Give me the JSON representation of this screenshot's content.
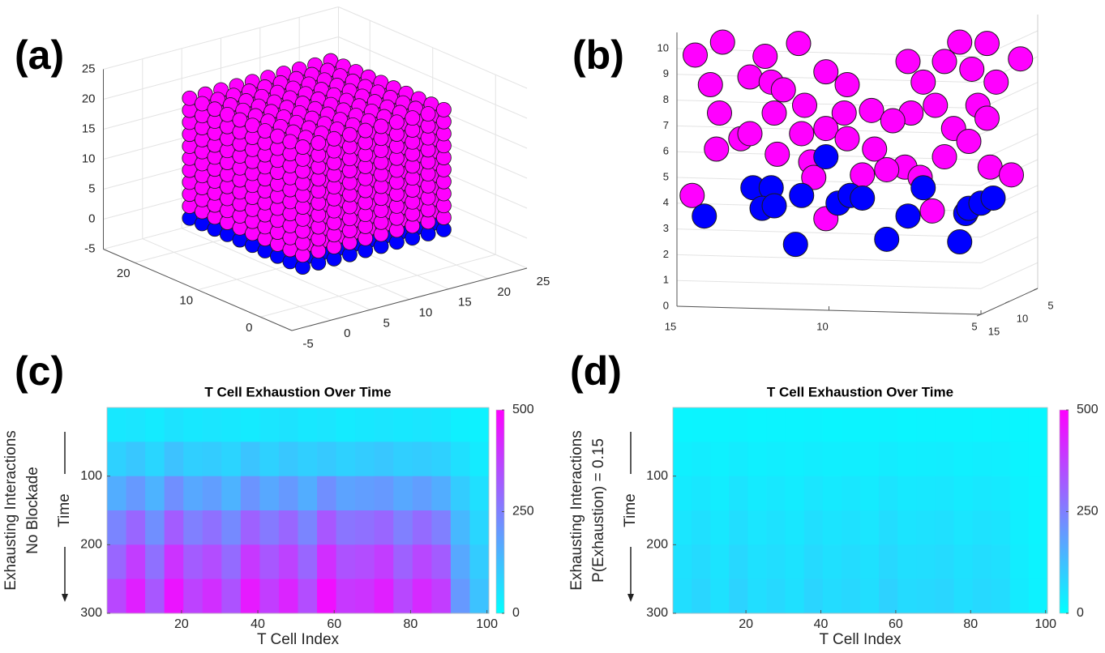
{
  "chart_data": [
    {
      "type": "lattice3d",
      "label": "(a)",
      "xlim": [
        -5,
        25
      ],
      "ylim": [
        -5,
        25
      ],
      "zlim": [
        -5,
        25
      ],
      "xticks": [
        -5,
        0,
        5,
        10,
        15,
        20,
        25
      ],
      "yticks": [
        0,
        10,
        20
      ],
      "zticks": [
        -5,
        0,
        5,
        10,
        15,
        20,
        25
      ],
      "series": [
        {
          "color": "#ff00ff",
          "x": [
            2,
            4,
            6,
            8,
            10,
            12,
            14,
            16,
            18,
            20
          ],
          "y": [
            2,
            4,
            6,
            8,
            10,
            12,
            14,
            16,
            18,
            20
          ],
          "z": [
            2,
            4,
            6,
            8,
            10,
            12,
            14,
            16,
            18,
            20
          ]
        },
        {
          "color": "#0000ff",
          "x": [
            2,
            4,
            6,
            8,
            10,
            12,
            14,
            16,
            18,
            20
          ],
          "y": [
            2,
            4,
            6,
            8,
            10,
            12,
            14,
            16,
            18,
            20
          ],
          "z": [
            0
          ]
        }
      ]
    },
    {
      "type": "scatter3d",
      "label": "(b)",
      "xlim": [
        15,
        5
      ],
      "ylim": [
        15,
        5
      ],
      "zlim": [
        0,
        10
      ],
      "xticks": [
        15,
        10,
        5
      ],
      "yticks": [
        15,
        10,
        5
      ],
      "zticks": [
        0,
        1,
        2,
        3,
        4,
        5,
        6,
        7,
        8,
        9,
        10
      ],
      "series": [
        {
          "color": "#ff00ff",
          "x": [
            14.4,
            13.5,
            13.9,
            13.6,
            13.7,
            12.9,
            12.1,
            11.0,
            12.6,
            11.9,
            11.5,
            10.8,
            11.8,
            12.6,
            11.7,
            10.9,
            10.1,
            9.4,
            9.5,
            8.6,
            10.1,
            9.4,
            10.6,
            10.5,
            8.5,
            8.9,
            7.5,
            7.4,
            6.9,
            7.3,
            6.5,
            6.2,
            5.7,
            5.3,
            4.8,
            3.7,
            4.5,
            5.1,
            4.8,
            5.9,
            6.2,
            5.4,
            4.7,
            4.0,
            7.9,
            14.5,
            10.1,
            6.6,
            7.0,
            8.1
          ],
          "z": [
            9.75,
            10.25,
            8.6,
            7.5,
            6.1,
            6.5,
            9.7,
            10.2,
            8.9,
            8.7,
            8.4,
            7.8,
            7.5,
            6.7,
            5.9,
            6.7,
            9.1,
            8.6,
            7.5,
            7.6,
            6.9,
            6.5,
            5.6,
            5.0,
            6.1,
            5.1,
            5.4,
            9.5,
            8.7,
            7.5,
            7.8,
            9.5,
            10.25,
            9.2,
            10.2,
            9.6,
            8.7,
            7.8,
            7.3,
            6.9,
            5.8,
            6.4,
            5.4,
            5.1,
            7.2,
            4.3,
            3.4,
            3.7,
            5.0,
            5.3
          ]
        },
        {
          "color": "#0000ff",
          "x": [
            14.1,
            10.1,
            12.5,
            11.9,
            12.2,
            11.8,
            10.9,
            11.1,
            9.7,
            9.3,
            8.9,
            8.1,
            7.4,
            6.9,
            5.5,
            5.4,
            5.0,
            4.6,
            5.7
          ],
          "z": [
            3.5,
            5.8,
            4.6,
            4.6,
            3.8,
            3.9,
            4.3,
            2.4,
            4.0,
            4.3,
            4.2,
            2.6,
            3.5,
            4.6,
            3.6,
            3.8,
            4.0,
            4.2,
            2.5
          ]
        }
      ]
    },
    {
      "type": "heatmap",
      "label": "(c)",
      "title": "T Cell Exhaustion Over Time",
      "xlabel": "T Cell Index",
      "ylabel": "Time",
      "side_labels": [
        "Exhausting Interactions",
        "No Blockade"
      ],
      "xlim": [
        0.5,
        100.5
      ],
      "ylim": [
        0,
        300
      ],
      "xticks": [
        20,
        40,
        60,
        80,
        100
      ],
      "yticks": [
        100,
        200,
        300
      ],
      "clim": [
        0,
        500
      ],
      "cticks": [
        0,
        250,
        500
      ],
      "colormap": [
        "#00ffff",
        "#ff00ff"
      ],
      "x": [
        3,
        8,
        13,
        18,
        23,
        28,
        33,
        38,
        43,
        48,
        53,
        58,
        63,
        68,
        73,
        78,
        83,
        88,
        93,
        98
      ],
      "y": [
        25,
        75,
        125,
        175,
        225,
        275
      ],
      "z": [
        [
          45,
          50,
          40,
          55,
          45,
          50,
          45,
          40,
          50,
          55,
          45,
          50,
          40,
          45,
          50,
          45,
          50,
          45,
          30,
          25
        ],
        [
          90,
          110,
          80,
          120,
          95,
          100,
          85,
          115,
          90,
          110,
          95,
          105,
          90,
          100,
          110,
          95,
          100,
          90,
          60,
          40
        ],
        [
          160,
          200,
          150,
          220,
          170,
          190,
          150,
          210,
          170,
          200,
          160,
          220,
          180,
          190,
          200,
          170,
          190,
          160,
          100,
          60
        ],
        [
          240,
          300,
          220,
          320,
          250,
          280,
          230,
          310,
          260,
          300,
          240,
          330,
          270,
          280,
          300,
          250,
          290,
          250,
          140,
          80
        ],
        [
          300,
          380,
          280,
          400,
          320,
          350,
          290,
          390,
          330,
          370,
          300,
          410,
          340,
          350,
          380,
          310,
          360,
          320,
          170,
          100
        ],
        [
          360,
          440,
          330,
          460,
          370,
          410,
          340,
          450,
          380,
          430,
          350,
          470,
          390,
          400,
          440,
          360,
          420,
          380,
          200,
          120
        ]
      ]
    },
    {
      "type": "heatmap",
      "label": "(d)",
      "title": "T Cell Exhaustion Over Time",
      "xlabel": "T Cell Index",
      "ylabel": "Time",
      "side_labels": [
        "Exhausting Interactions",
        "P(Exhaustion) = 0.15"
      ],
      "xlim": [
        0.5,
        100.5
      ],
      "ylim": [
        0,
        300
      ],
      "xticks": [
        20,
        40,
        60,
        80,
        100
      ],
      "yticks": [
        100,
        200,
        300
      ],
      "clim": [
        0,
        500
      ],
      "cticks": [
        0,
        250,
        500
      ],
      "colormap": [
        "#00ffff",
        "#ff00ff"
      ],
      "x": [
        3,
        8,
        13,
        18,
        23,
        28,
        33,
        38,
        43,
        48,
        53,
        58,
        63,
        68,
        73,
        78,
        83,
        88,
        93,
        98
      ],
      "y": [
        25,
        75,
        125,
        175,
        225,
        275
      ],
      "z": [
        [
          20,
          22,
          20,
          24,
          20,
          22,
          21,
          23,
          20,
          22,
          21,
          23,
          20,
          22,
          21,
          22,
          20,
          21,
          18,
          15
        ],
        [
          30,
          35,
          28,
          38,
          30,
          33,
          29,
          36,
          31,
          34,
          30,
          37,
          31,
          33,
          35,
          30,
          33,
          31,
          22,
          18
        ],
        [
          40,
          48,
          36,
          52,
          40,
          45,
          38,
          50,
          42,
          47,
          40,
          52,
          43,
          45,
          48,
          40,
          46,
          42,
          27,
          20
        ],
        [
          50,
          60,
          45,
          65,
          50,
          56,
          47,
          62,
          52,
          58,
          50,
          66,
          53,
          56,
          60,
          50,
          57,
          52,
          32,
          22
        ],
        [
          58,
          70,
          52,
          76,
          58,
          65,
          54,
          72,
          60,
          68,
          58,
          77,
          62,
          65,
          70,
          58,
          66,
          60,
          36,
          24
        ],
        [
          65,
          80,
          58,
          86,
          65,
          74,
          60,
          82,
          68,
          77,
          65,
          88,
          70,
          74,
          80,
          65,
          75,
          68,
          40,
          26
        ]
      ]
    }
  ]
}
